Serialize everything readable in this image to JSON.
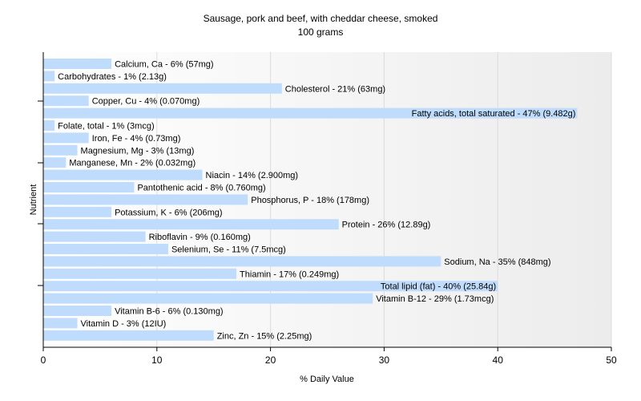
{
  "chart_data": {
    "type": "bar",
    "orientation": "horizontal",
    "title": "Sausage, pork and beef, with cheddar cheese, smoked",
    "subtitle": "100 grams",
    "xlabel": "% Daily Value",
    "ylabel": "Nutrient",
    "xlim": [
      0,
      50
    ],
    "xticks": [
      "0",
      "10",
      "20",
      "30",
      "40",
      "50"
    ],
    "grid": true,
    "bar_color": "#c0dcfc",
    "categories": [
      "Calcium, Ca",
      "Carbohydrates",
      "Cholesterol",
      "Copper, Cu",
      "Fatty acids, total saturated",
      "Folate, total",
      "Iron, Fe",
      "Magnesium, Mg",
      "Manganese, Mn",
      "Niacin",
      "Pantothenic acid",
      "Phosphorus, P",
      "Potassium, K",
      "Protein",
      "Riboflavin",
      "Selenium, Se",
      "Sodium, Na",
      "Thiamin",
      "Total lipid (fat)",
      "Vitamin B-12",
      "Vitamin B-6",
      "Vitamin D",
      "Zinc, Zn"
    ],
    "values": [
      6,
      1,
      21,
      4,
      47,
      1,
      4,
      3,
      2,
      14,
      8,
      18,
      6,
      26,
      9,
      11,
      35,
      17,
      40,
      29,
      6,
      3,
      15
    ],
    "labels": [
      "Calcium, Ca - 6% (57mg)",
      "Carbohydrates - 1% (2.13g)",
      "Cholesterol - 21% (63mg)",
      "Copper, Cu - 4% (0.070mg)",
      "Fatty acids, total saturated - 47% (9.482g)",
      "Folate, total - 1% (3mcg)",
      "Iron, Fe - 4% (0.73mg)",
      "Magnesium, Mg - 3% (13mg)",
      "Manganese, Mn - 2% (0.032mg)",
      "Niacin - 14% (2.900mg)",
      "Pantothenic acid - 8% (0.760mg)",
      "Phosphorus, P - 18% (178mg)",
      "Potassium, K - 6% (206mg)",
      "Protein - 26% (12.89g)",
      "Riboflavin - 9% (0.160mg)",
      "Selenium, Se - 11% (7.5mcg)",
      "Sodium, Na - 35% (848mg)",
      "Thiamin - 17% (0.249mg)",
      "Total lipid (fat) - 40% (25.84g)",
      "Vitamin B-12 - 29% (1.73mcg)",
      "Vitamin B-6 - 6% (0.130mg)",
      "Vitamin D - 3% (12IU)",
      "Zinc, Zn - 15% (2.25mg)"
    ]
  }
}
